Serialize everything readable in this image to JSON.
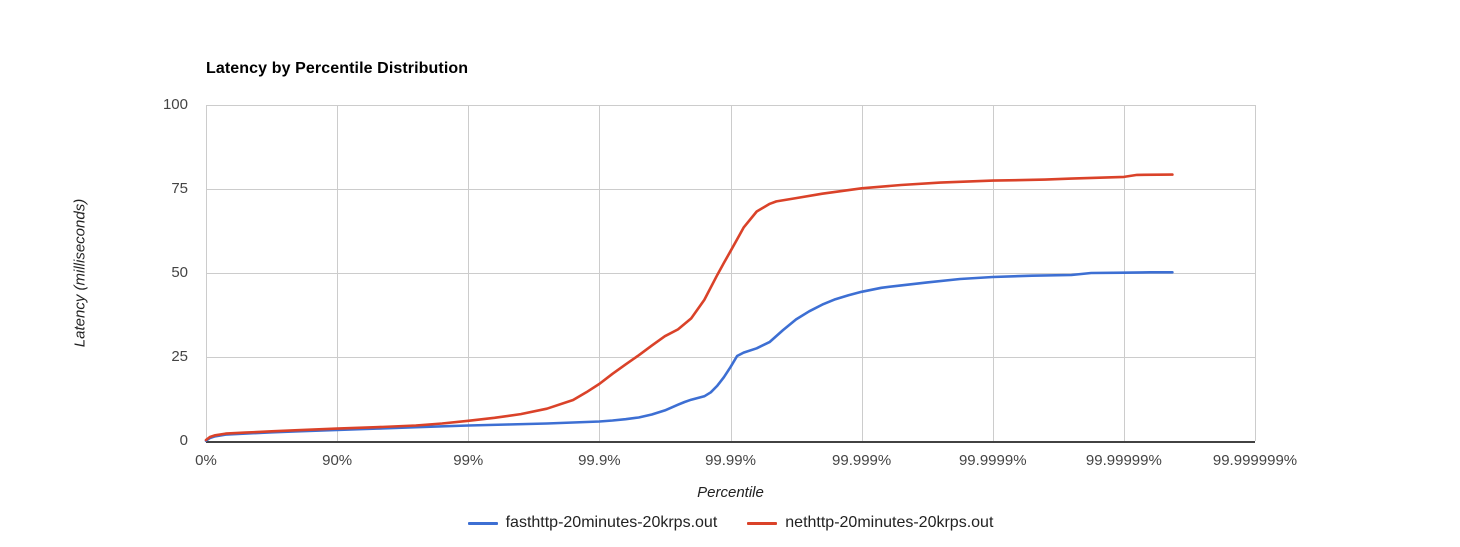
{
  "page": {
    "background": "#ffffff"
  },
  "colors": {
    "grid": "#cccccc",
    "axis_line": "#424242",
    "tick_text": "#444444",
    "title_text": "#000000"
  },
  "chart_data": {
    "type": "line",
    "title": "Latency by Percentile Distribution",
    "xlabel": "Percentile",
    "ylabel": "Latency (milliseconds)",
    "x_scale": "logarithmic percentile axis, position = nines = log10(1/(1-p))",
    "ylim": [
      0,
      100
    ],
    "xlim_nines": [
      0,
      8
    ],
    "grid": true,
    "legend_position": "bottom",
    "x_ticks": [
      {
        "label": "0%",
        "nines": 0
      },
      {
        "label": "90%",
        "nines": 1
      },
      {
        "label": "99%",
        "nines": 2
      },
      {
        "label": "99.9%",
        "nines": 3
      },
      {
        "label": "99.99%",
        "nines": 4
      },
      {
        "label": "99.999%",
        "nines": 5
      },
      {
        "label": "99.9999%",
        "nines": 6
      },
      {
        "label": "99.99999%",
        "nines": 7
      },
      {
        "label": "99.999999%",
        "nines": 8
      }
    ],
    "y_ticks": [
      {
        "label": "0",
        "value": 0
      },
      {
        "label": "25",
        "value": 25
      },
      {
        "label": "50",
        "value": 50
      },
      {
        "label": "75",
        "value": 75
      },
      {
        "label": "100",
        "value": 100
      }
    ],
    "series": [
      {
        "name": "fasthttp-20minutes-20krps.out",
        "color": "#3D6FD3",
        "points_nines_ms": [
          [
            0,
            0.1
          ],
          [
            0.03,
            0.9
          ],
          [
            0.07,
            1.4
          ],
          [
            0.15,
            1.9
          ],
          [
            0.3,
            2.2
          ],
          [
            0.5,
            2.6
          ],
          [
            0.7,
            2.9
          ],
          [
            1,
            3.3
          ],
          [
            1.3,
            3.7
          ],
          [
            1.6,
            4.1
          ],
          [
            2,
            4.6
          ],
          [
            2.3,
            4.9
          ],
          [
            2.6,
            5.2
          ],
          [
            2.8,
            5.5
          ],
          [
            3,
            5.8
          ],
          [
            3.1,
            6.1
          ],
          [
            3.2,
            6.5
          ],
          [
            3.3,
            7.0
          ],
          [
            3.4,
            7.9
          ],
          [
            3.5,
            9.1
          ],
          [
            3.6,
            10.8
          ],
          [
            3.65,
            11.6
          ],
          [
            3.7,
            12.3
          ],
          [
            3.8,
            13.3
          ],
          [
            3.85,
            14.5
          ],
          [
            3.9,
            16.5
          ],
          [
            3.95,
            19.0
          ],
          [
            4,
            22.0
          ],
          [
            4.05,
            25.3
          ],
          [
            4.1,
            26.3
          ],
          [
            4.2,
            27.6
          ],
          [
            4.3,
            29.5
          ],
          [
            4.4,
            33.0
          ],
          [
            4.5,
            36.2
          ],
          [
            4.6,
            38.6
          ],
          [
            4.7,
            40.6
          ],
          [
            4.8,
            42.2
          ],
          [
            4.9,
            43.4
          ],
          [
            5,
            44.4
          ],
          [
            5.15,
            45.6
          ],
          [
            5.3,
            46.3
          ],
          [
            5.5,
            47.2
          ],
          [
            5.75,
            48.2
          ],
          [
            6,
            48.8
          ],
          [
            6.3,
            49.2
          ],
          [
            6.6,
            49.4
          ],
          [
            6.75,
            50.0
          ],
          [
            7,
            50.1
          ],
          [
            7.2,
            50.2
          ],
          [
            7.37,
            50.2
          ]
        ]
      },
      {
        "name": "nethttp-20minutes-20krps.out",
        "color": "#DA4229",
        "points_nines_ms": [
          [
            0,
            0.3
          ],
          [
            0.03,
            1.2
          ],
          [
            0.07,
            1.7
          ],
          [
            0.15,
            2.2
          ],
          [
            0.3,
            2.5
          ],
          [
            0.5,
            2.9
          ],
          [
            0.7,
            3.2
          ],
          [
            1,
            3.7
          ],
          [
            1.3,
            4.1
          ],
          [
            1.6,
            4.6
          ],
          [
            1.8,
            5.2
          ],
          [
            2,
            6.0
          ],
          [
            2.2,
            6.9
          ],
          [
            2.4,
            8.0
          ],
          [
            2.6,
            9.6
          ],
          [
            2.8,
            12.2
          ],
          [
            2.9,
            14.5
          ],
          [
            3,
            17.0
          ],
          [
            3.1,
            20.0
          ],
          [
            3.2,
            22.8
          ],
          [
            3.3,
            25.5
          ],
          [
            3.4,
            28.4
          ],
          [
            3.5,
            31.2
          ],
          [
            3.6,
            33.2
          ],
          [
            3.7,
            36.5
          ],
          [
            3.8,
            42.0
          ],
          [
            3.9,
            49.5
          ],
          [
            3.95,
            53.0
          ],
          [
            4,
            56.5
          ],
          [
            4.05,
            60.0
          ],
          [
            4.1,
            63.5
          ],
          [
            4.2,
            68.3
          ],
          [
            4.3,
            70.6
          ],
          [
            4.35,
            71.3
          ],
          [
            4.5,
            72.3
          ],
          [
            4.7,
            73.6
          ],
          [
            5,
            75.2
          ],
          [
            5.3,
            76.2
          ],
          [
            5.6,
            76.9
          ],
          [
            6,
            77.5
          ],
          [
            6.4,
            77.8
          ],
          [
            6.6,
            78.1
          ],
          [
            7,
            78.6
          ],
          [
            7.1,
            79.2
          ],
          [
            7.37,
            79.3
          ]
        ]
      }
    ]
  }
}
